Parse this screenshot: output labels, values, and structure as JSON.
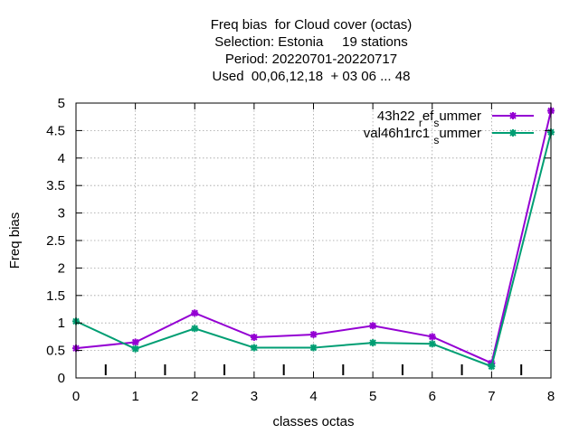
{
  "chart_data": {
    "type": "line",
    "title_lines": [
      "Freq bias  for Cloud cover (octas)",
      "Selection: Estonia     19 stations",
      "Period: 20220701-20220717",
      "Used  00,06,12,18  + 03 06 ... 48"
    ],
    "xlabel": "classes octas",
    "ylabel": "Freq bias",
    "xlim": [
      0,
      8
    ],
    "ylim": [
      0,
      5
    ],
    "x_ticks": [
      "0",
      "1",
      "2",
      "3",
      "4",
      "5",
      "6",
      "7",
      "8"
    ],
    "y_ticks": [
      "0",
      "0.5",
      "1",
      "1.5",
      "2",
      "2.5",
      "3",
      "3.5",
      "4",
      "4.5",
      "5"
    ],
    "grid": true,
    "legend_position": "top-right",
    "x": [
      0,
      1,
      2,
      3,
      4,
      5,
      6,
      7,
      8
    ],
    "series": [
      {
        "name": "43h22_ref_summer",
        "legend_main": "43h22",
        "legend_parts": [
          {
            "text": "43h22 ",
            "sub": false
          },
          {
            "text": "r",
            "sub": true
          },
          {
            "text": "ef",
            "sub": false
          },
          {
            "text": "s",
            "sub": true
          },
          {
            "text": "ummer",
            "sub": false
          }
        ],
        "color": "#9400d3",
        "values": [
          0.54,
          0.65,
          1.18,
          0.74,
          0.79,
          0.95,
          0.75,
          0.27,
          4.86
        ]
      },
      {
        "name": "val46h1rc1_summer",
        "legend_parts": [
          {
            "text": "val46h1rc1 ",
            "sub": false
          },
          {
            "text": "s",
            "sub": true
          },
          {
            "text": "ummer",
            "sub": false
          }
        ],
        "color": "#009e73",
        "values": [
          1.03,
          0.53,
          0.9,
          0.55,
          0.55,
          0.64,
          0.62,
          0.21,
          4.47
        ]
      }
    ]
  }
}
